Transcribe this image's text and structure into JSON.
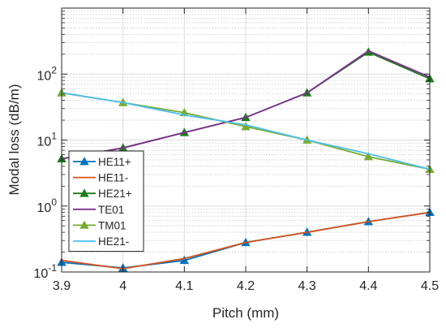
{
  "chart_data": {
    "type": "line",
    "xlabel": "Pitch (mm)",
    "ylabel": "Modal loss (dB/m)",
    "yscale": "log",
    "xlim": [
      3.9,
      4.5
    ],
    "ylim": [
      0.1,
      1000
    ],
    "grid": true,
    "legend_position": "lower-left",
    "x": [
      3.9,
      4.0,
      4.1,
      4.2,
      4.3,
      4.4,
      4.5
    ],
    "x_tick_labels": [
      "3.9",
      "4",
      "4.1",
      "4.2",
      "4.3",
      "4.4",
      "4.5"
    ],
    "y_tick_labels": [
      {
        "value": 0.1,
        "base": "10",
        "exp": "-1"
      },
      {
        "value": 1,
        "base": "10",
        "exp": "0"
      },
      {
        "value": 10,
        "base": "10",
        "exp": "1"
      },
      {
        "value": 100,
        "base": "10",
        "exp": "2"
      }
    ],
    "series": [
      {
        "name": "HE11+",
        "color": "#0072bd",
        "marker": "triangle",
        "values": [
          0.14,
          0.115,
          0.15,
          0.28,
          0.4,
          0.58,
          0.8
        ]
      },
      {
        "name": "HE11-",
        "color": "#d95319",
        "marker": "none",
        "values": [
          0.15,
          0.112,
          0.16,
          0.28,
          0.4,
          0.58,
          0.8
        ]
      },
      {
        "name": "HE21+",
        "color": "#1e7b1e",
        "marker": "triangle",
        "values": [
          5.2,
          7.6,
          13,
          22,
          52,
          215,
          85
        ]
      },
      {
        "name": "TE01",
        "color": "#7e2f8e",
        "marker": "none",
        "values": [
          5.2,
          7.6,
          13,
          22,
          52,
          225,
          90
        ]
      },
      {
        "name": "TM01",
        "color": "#77ac30",
        "marker": "triangle",
        "values": [
          52,
          37,
          26,
          16,
          10,
          5.6,
          3.6
        ]
      },
      {
        "name": "HE21-",
        "color": "#4dbeee",
        "marker": "none",
        "values": [
          52,
          37,
          24,
          17,
          10,
          6.2,
          3.6
        ]
      }
    ]
  }
}
